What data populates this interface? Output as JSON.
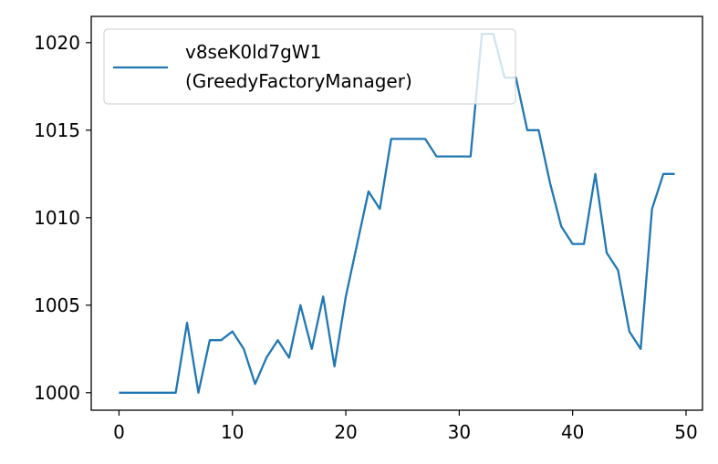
{
  "chart_data": {
    "type": "line",
    "title": "",
    "xlabel": "",
    "ylabel": "",
    "xlim": [
      -2.45,
      51.45
    ],
    "ylim": [
      999.0,
      1021.5
    ],
    "xticks": [
      0,
      10,
      20,
      30,
      40,
      50
    ],
    "yticks": [
      1000,
      1005,
      1010,
      1015,
      1020
    ],
    "xtick_labels": [
      "0",
      "10",
      "20",
      "30",
      "40",
      "50"
    ],
    "ytick_labels": [
      "1000",
      "1005",
      "1010",
      "1015",
      "1020"
    ],
    "grid": false,
    "legend_position": "upper-left",
    "series": [
      {
        "name_line1": "v8seK0ld7gW1",
        "name_line2": "(GreedyFactoryManager)",
        "color": "#1f77b4",
        "x": [
          0,
          1,
          2,
          3,
          4,
          5,
          6,
          7,
          8,
          9,
          10,
          11,
          12,
          13,
          14,
          15,
          16,
          17,
          18,
          19,
          20,
          21,
          22,
          23,
          24,
          25,
          26,
          27,
          28,
          29,
          30,
          31,
          32,
          33,
          34,
          35,
          36,
          37,
          38,
          39,
          40,
          41,
          42,
          43,
          44,
          45,
          46,
          47,
          48,
          49
        ],
        "y": [
          1000,
          1000,
          1000,
          1000,
          1000,
          1000,
          1004,
          1000,
          1003,
          1003,
          1003.5,
          1002.5,
          1000.5,
          1002,
          1003,
          1002,
          1005,
          1002.5,
          1005.5,
          1001.5,
          1005.5,
          1008.5,
          1011.5,
          1010.5,
          1014.5,
          1014.5,
          1014.5,
          1014.5,
          1013.5,
          1013.5,
          1013.5,
          1013.5,
          1020.5,
          1020.5,
          1018,
          1018,
          1015,
          1015,
          1012,
          1009.5,
          1008.5,
          1008.5,
          1012.5,
          1008,
          1007,
          1003.5,
          1002.5,
          1010.5,
          1012.5,
          1012.5
        ]
      }
    ]
  }
}
